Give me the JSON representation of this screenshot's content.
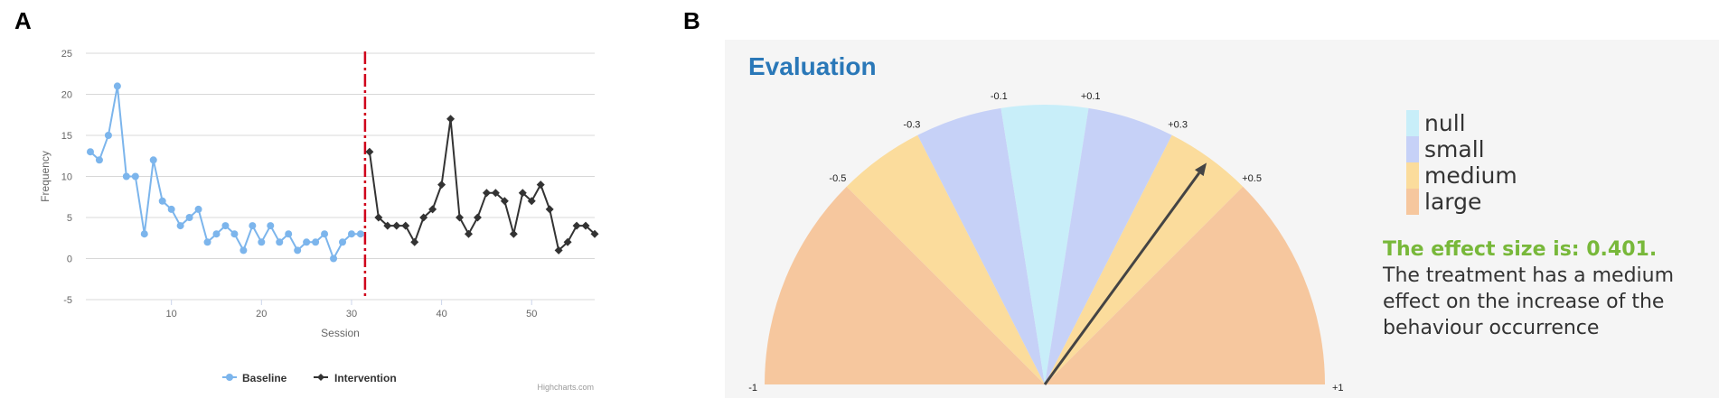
{
  "panels": {
    "a_label": "A",
    "b_label": "B"
  },
  "chart_data": [
    {
      "type": "line",
      "xlabel": "Session",
      "ylabel": "Frequency",
      "ylim": [
        -5,
        25
      ],
      "xlim": [
        0.5,
        57
      ],
      "yticks": [
        -5,
        0,
        5,
        10,
        15,
        20,
        25
      ],
      "xticks": [
        10,
        20,
        30,
        40,
        50
      ],
      "grid": true,
      "legend_position": "bottom-center",
      "credit": "Highcharts.com",
      "phase_change_x": 31.5,
      "series": [
        {
          "name": "Baseline",
          "color": "#7cb5ec",
          "x": [
            1,
            2,
            3,
            4,
            5,
            6,
            7,
            8,
            9,
            10,
            11,
            12,
            13,
            14,
            15,
            16,
            17,
            18,
            19,
            20,
            21,
            22,
            23,
            24,
            25,
            26,
            27,
            28,
            29,
            30,
            31
          ],
          "values": [
            13,
            12,
            15,
            21,
            10,
            10,
            3,
            12,
            7,
            6,
            4,
            5,
            6,
            2,
            3,
            4,
            3,
            1,
            4,
            2,
            4,
            2,
            3,
            1,
            2,
            2,
            3,
            0,
            2,
            3,
            3
          ]
        },
        {
          "name": "Intervention",
          "color": "#333333",
          "x": [
            32,
            33,
            34,
            35,
            36,
            37,
            38,
            39,
            40,
            41,
            42,
            43,
            44,
            45,
            46,
            47,
            48,
            49,
            50,
            51,
            52,
            53,
            54,
            55,
            56,
            57
          ],
          "values": [
            13,
            5,
            4,
            4,
            4,
            2,
            5,
            6,
            9,
            17,
            5,
            3,
            5,
            8,
            8,
            7,
            3,
            8,
            7,
            9,
            6,
            1,
            2,
            4,
            4,
            3
          ]
        }
      ]
    },
    {
      "type": "gauge",
      "title": "Evaluation",
      "range": [
        -1,
        1
      ],
      "value": 0.401,
      "tick_labels": [
        "-1",
        "-0.5",
        "-0.3",
        "-0.1",
        "+0.1",
        "+0.3",
        "+0.5",
        "+1"
      ],
      "tick_values": [
        -1,
        -0.5,
        -0.3,
        -0.1,
        0.1,
        0.3,
        0.5,
        1
      ],
      "bands": [
        {
          "from": -1,
          "to": -0.5,
          "category": "large"
        },
        {
          "from": -0.5,
          "to": -0.3,
          "category": "medium"
        },
        {
          "from": -0.3,
          "to": -0.1,
          "category": "small"
        },
        {
          "from": -0.1,
          "to": 0.1,
          "category": "null"
        },
        {
          "from": 0.1,
          "to": 0.3,
          "category": "small"
        },
        {
          "from": 0.3,
          "to": 0.5,
          "category": "medium"
        },
        {
          "from": 0.5,
          "to": 1,
          "category": "large"
        }
      ],
      "legend": [
        {
          "label": "null",
          "color": "#c8eef9"
        },
        {
          "label": "small",
          "color": "#c6d1f7"
        },
        {
          "label": "medium",
          "color": "#fbdc9c"
        },
        {
          "label": "large",
          "color": "#f6c79e"
        }
      ],
      "needle_color": "#444444"
    }
  ],
  "effect_text": {
    "headline": "The effect size is: 0.401.",
    "body": "The treatment has a medium effect on the increase of the behaviour occurrence"
  }
}
